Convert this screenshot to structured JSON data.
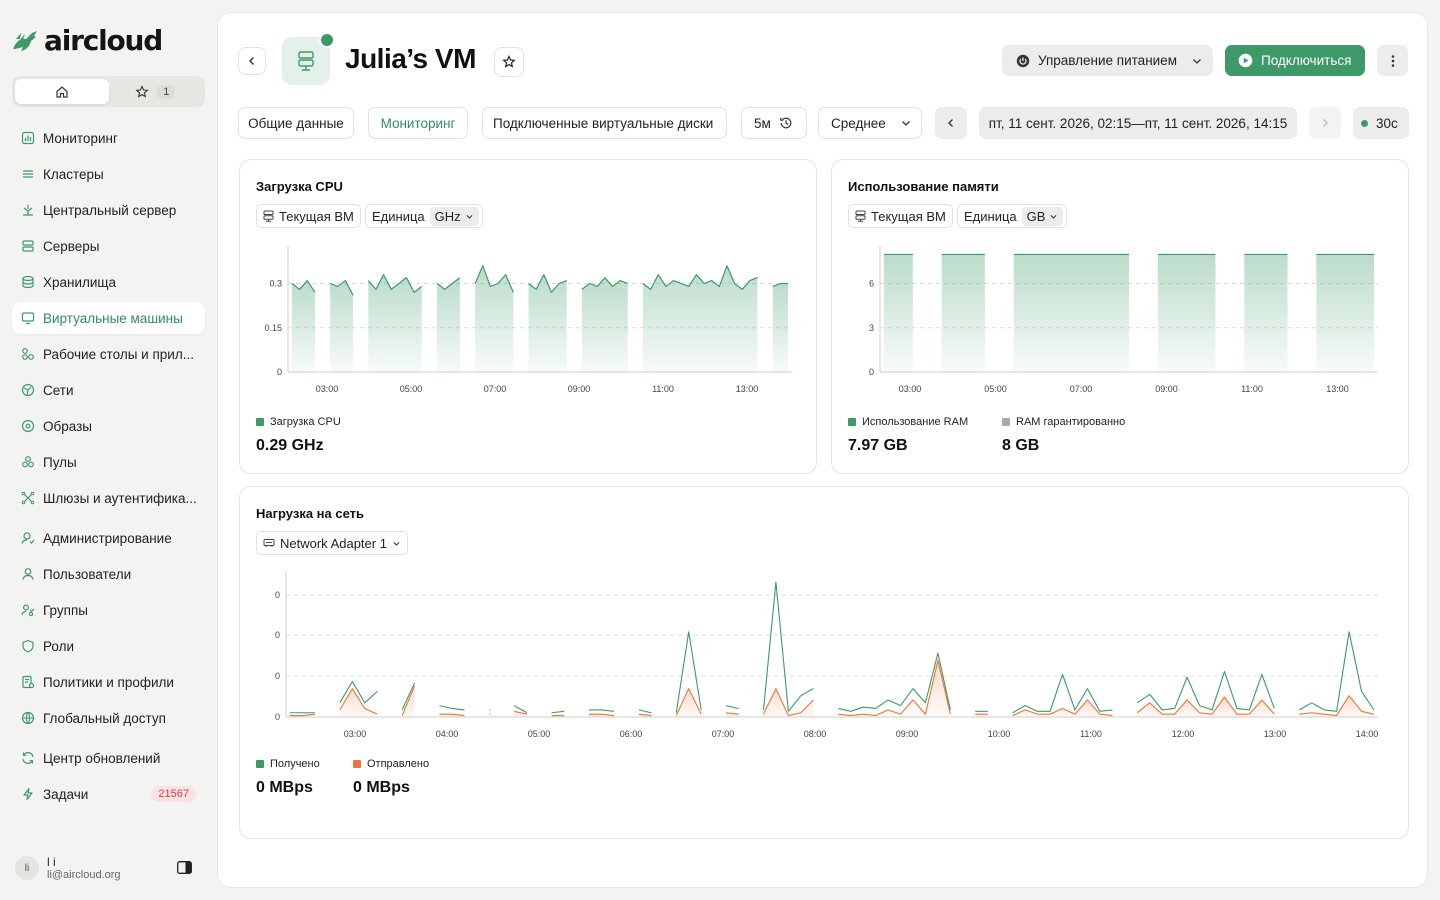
{
  "app": {
    "logo_text": "aircloud"
  },
  "sidebar": {
    "favorites_count": "1",
    "items": [
      {
        "label": "Мониторинг",
        "icon": "monitoring-icon"
      },
      {
        "label": "Кластеры",
        "icon": "clusters-icon"
      },
      {
        "label": "Центральный сервер",
        "icon": "central-server-icon"
      },
      {
        "label": "Серверы",
        "icon": "servers-icon"
      },
      {
        "label": "Хранилища",
        "icon": "storage-icon"
      },
      {
        "label": "Виртуальные машины",
        "icon": "vm-icon",
        "active": true
      },
      {
        "label": "Рабочие столы и прил...",
        "icon": "desktops-icon"
      },
      {
        "label": "Сети",
        "icon": "networks-icon"
      },
      {
        "label": "Образы",
        "icon": "images-icon"
      },
      {
        "label": "Пулы",
        "icon": "pools-icon"
      },
      {
        "label": "Шлюзы и аутентифика...",
        "icon": "gateways-icon"
      },
      {
        "label": "Администрирование",
        "icon": "admin-icon",
        "gap": true
      },
      {
        "label": "Пользователи",
        "icon": "user-icon"
      },
      {
        "label": "Группы",
        "icon": "groups-icon"
      },
      {
        "label": "Роли",
        "icon": "shield-icon"
      },
      {
        "label": "Политики и профили",
        "icon": "policies-icon"
      },
      {
        "label": "Глобальный доступ",
        "icon": "globe-icon"
      },
      {
        "label": "Центр обновлений",
        "icon": "refresh-icon",
        "gap": true
      },
      {
        "label": "Задачи",
        "icon": "lightning-icon",
        "badge": "21567"
      }
    ],
    "user": {
      "initials": "li",
      "name": "l i",
      "email": "li@aircloud.org"
    }
  },
  "header": {
    "title": "Julia’s VM",
    "power_label": "Управление питанием",
    "connect_label": "Подключиться"
  },
  "tabs": [
    {
      "label": "Общие данные"
    },
    {
      "label": "Мониторинг",
      "active": true
    },
    {
      "label": "Подключенные виртуальные диски"
    }
  ],
  "controls": {
    "interval": "5м",
    "aggregation": "Среднее",
    "date_range": "пт, 11 сент. 2026, 02:15—пт, 11 сент. 2026, 14:15",
    "refresh": "30с"
  },
  "colors": {
    "accent": "#3d9a68",
    "sent": "#e8763a",
    "guaranteed": "#a9a9a6"
  },
  "cards": {
    "cpu": {
      "title": "Загрузка CPU",
      "scope": "Текущая ВМ",
      "unit_label": "Единица",
      "unit": "GHz",
      "legend": "Загрузка CPU",
      "value": "0.29 GHz"
    },
    "mem": {
      "title": "Использование памяти",
      "scope": "Текущая ВМ",
      "unit_label": "Единица",
      "unit": "GB",
      "legend_used": "Использование RAM",
      "legend_guaranteed": "RAM гарантированно",
      "value_used": "7.97 GB",
      "value_guaranteed": "8 GB"
    },
    "net": {
      "title": "Нагрузка на сеть",
      "adapter": "Network Adapter 1",
      "legend_received": "Получено",
      "legend_sent": "Отправлено",
      "value_received": "0 MBps",
      "value_sent": "0 MBps"
    }
  },
  "chart_data": [
    {
      "type": "area",
      "yticks": [
        "0",
        "0.15",
        "0.3"
      ],
      "ylim": [
        0,
        0.4
      ],
      "xticks": [
        "03:00",
        "05:00",
        "07:00",
        "09:00",
        "11:00",
        "13:00"
      ],
      "series": [
        {
          "name": "Загрузка CPU",
          "values": [
            0.3,
            0.28,
            0.31,
            0.27,
            null,
            0.3,
            0.29,
            0.31,
            0.26,
            null,
            0.31,
            0.28,
            0.33,
            0.28,
            0.3,
            0.32,
            0.27,
            0.29,
            null,
            0.3,
            0.28,
            0.3,
            0.32,
            null,
            0.3,
            0.36,
            0.29,
            0.3,
            0.33,
            0.27,
            null,
            0.3,
            0.28,
            0.33,
            0.27,
            0.3,
            0.31,
            null,
            0.28,
            0.3,
            0.29,
            0.32,
            0.29,
            0.31,
            0.3,
            null,
            0.3,
            0.28,
            0.33,
            0.29,
            0.31,
            0.3,
            0.29,
            0.33,
            0.3,
            0.31,
            0.29,
            0.36,
            0.3,
            0.28,
            0.31,
            0.32,
            null,
            0.29,
            0.3,
            0.3
          ]
        }
      ]
    },
    {
      "type": "area",
      "yticks": [
        "0",
        "3",
        "6"
      ],
      "ylim": [
        0,
        8
      ],
      "xticks": [
        "03:00",
        "05:00",
        "07:00",
        "09:00",
        "11:00",
        "13:00"
      ],
      "series": [
        {
          "name": "Использование RAM",
          "values": [
            7.97,
            7.97,
            7.97,
            null,
            7.97,
            7.97,
            7.97,
            7.97,
            null,
            7.97,
            7.97,
            7.97,
            7.97,
            7.97,
            7.97,
            7.97,
            7.97,
            7.97,
            null,
            7.97,
            7.97,
            7.97,
            7.97,
            7.97,
            null,
            7.97,
            7.97,
            7.97,
            7.97,
            null,
            7.97,
            7.97,
            7.97,
            7.97,
            7.97
          ]
        },
        {
          "name": "RAM гарантированно",
          "values": [
            8,
            8,
            8,
            8,
            8,
            8,
            8,
            8,
            8,
            8,
            8,
            8,
            8,
            8,
            8,
            8,
            8,
            8,
            8,
            8,
            8,
            8,
            8,
            8,
            8,
            8,
            8,
            8,
            8,
            8,
            8,
            8,
            8,
            8,
            8
          ]
        }
      ]
    },
    {
      "type": "line",
      "yticks": [
        "0",
        "0",
        "0",
        "0"
      ],
      "xticks": [
        "03:00",
        "04:00",
        "05:00",
        "06:00",
        "07:00",
        "08:00",
        "09:00",
        "10:00",
        "11:00",
        "12:00",
        "13:00",
        "14:00"
      ],
      "series": [
        {
          "name": "Получено",
          "values": [
            0.01,
            0.01,
            0.02,
            null,
            0.05,
            0.2,
            0.06,
            0.02,
            null,
            0.01,
            0.22,
            null,
            0.02,
            0.02,
            0.01,
            null,
            0.02,
            null,
            0.04,
            0.02,
            null,
            0.01,
            0.01,
            null,
            0.02,
            0.02,
            0.01,
            null,
            0.02,
            0.01,
            null,
            0.01,
            0.2,
            0.02,
            null,
            0.03,
            0.02,
            null,
            0.02,
            0.2,
            0.01,
            0.03,
            0.12,
            null,
            0.02,
            0.01,
            0.02,
            0.01,
            0.05,
            0.02,
            0.12,
            0.02,
            0.4,
            0.02,
            null,
            0.02,
            0.02,
            null,
            0.01,
            0.05,
            0.02,
            0.02,
            0.06,
            0.02,
            0.12,
            0.02,
            0.01,
            null,
            0.03,
            0.1,
            0.02,
            0.02,
            0.12,
            0.03,
            0.02,
            0.14,
            0.02,
            0.02,
            0.12,
            0.02,
            null,
            0.02,
            0.03,
            0.02,
            0.01,
            0.15,
            0.04,
            0.02
          ]
        },
        {
          "name": "Отправлено",
          "values": [
            0.03,
            0.03,
            0.03,
            null,
            0.1,
            0.25,
            0.1,
            0.18,
            null,
            0.05,
            0.24,
            null,
            0.08,
            0.06,
            0.05,
            null,
            0.05,
            null,
            0.08,
            0.03,
            null,
            0.03,
            0.04,
            null,
            0.05,
            0.05,
            0.04,
            null,
            0.05,
            0.03,
            null,
            0.03,
            0.6,
            0.05,
            null,
            0.08,
            0.06,
            null,
            0.05,
            0.95,
            0.04,
            0.15,
            0.2,
            null,
            0.06,
            0.04,
            0.07,
            0.06,
            0.12,
            0.08,
            0.2,
            0.1,
            0.45,
            0.05,
            null,
            0.04,
            0.04,
            null,
            0.03,
            0.08,
            0.04,
            0.04,
            0.3,
            0.05,
            0.2,
            0.04,
            0.05,
            null,
            0.1,
            0.16,
            0.05,
            0.06,
            0.28,
            0.08,
            0.05,
            0.32,
            0.06,
            0.05,
            0.3,
            0.06,
            null,
            0.05,
            0.1,
            0.05,
            0.04,
            0.6,
            0.18,
            0.05
          ]
        }
      ]
    }
  ]
}
